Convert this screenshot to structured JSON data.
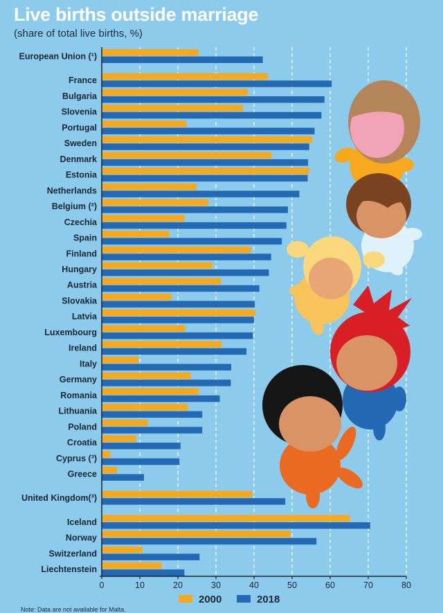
{
  "colors": {
    "background": "#8ccbec",
    "series_2000": "#f6a91d",
    "series_2018": "#2369b3",
    "grid": "#ffffff",
    "axis": "#1b2636"
  },
  "note": "Note: Data are not available for Malta.",
  "chart_data": {
    "type": "bar",
    "orientation": "horizontal",
    "title": "Live births outside marriage",
    "subtitle": "(share of total live births, %)",
    "xlim": [
      0,
      80
    ],
    "xticks": [
      0,
      10,
      20,
      30,
      40,
      50,
      60,
      70,
      80
    ],
    "grid": "vertical dashed",
    "legend_position": "bottom",
    "groups": [
      [
        "European Union (¹)"
      ],
      [
        "France",
        "Bulgaria",
        "Slovenia",
        "Portugal",
        "Sweden",
        "Denmark",
        "Estonia",
        "Netherlands",
        "Belgium (²)",
        "Czechia",
        "Spain",
        "Finland",
        "Hungary",
        "Austria",
        "Slovakia",
        "Latvia",
        "Luxembourg",
        "Ireland",
        "Italy",
        "Germany",
        "Romania",
        "Lithuania",
        "Poland",
        "Croatia",
        "Cyprus (³)",
        "Greece"
      ],
      [
        "United Kingdom(³)"
      ],
      [
        "Iceland",
        "Norway",
        "Switzerland",
        "Liechtenstein"
      ]
    ],
    "categories": [
      "European Union (¹)",
      "France",
      "Bulgaria",
      "Slovenia",
      "Portugal",
      "Sweden",
      "Denmark",
      "Estonia",
      "Netherlands",
      "Belgium (²)",
      "Czechia",
      "Spain",
      "Finland",
      "Hungary",
      "Austria",
      "Slovakia",
      "Latvia",
      "Luxembourg",
      "Ireland",
      "Italy",
      "Germany",
      "Romania",
      "Lithuania",
      "Poland",
      "Croatia",
      "Cyprus (³)",
      "Greece",
      "United Kingdom(³)",
      "Iceland",
      "Norway",
      "Switzerland",
      "Liechtenstein"
    ],
    "series": [
      {
        "name": "2000",
        "values": [
          25.4,
          43.6,
          38.4,
          37.1,
          22.2,
          55.3,
          44.6,
          54.5,
          24.9,
          28.0,
          21.8,
          17.7,
          39.2,
          29.0,
          31.3,
          18.3,
          40.3,
          21.9,
          31.5,
          9.7,
          23.4,
          25.5,
          22.6,
          12.1,
          9.0,
          2.3,
          4.0,
          39.5,
          65.2,
          49.6,
          10.7,
          15.7
        ]
      },
      {
        "name": "2018",
        "values": [
          42.3,
          60.4,
          58.5,
          57.7,
          55.9,
          54.5,
          54.2,
          54.1,
          51.9,
          48.9,
          48.5,
          47.3,
          44.5,
          43.9,
          41.4,
          40.2,
          40.0,
          39.7,
          38.0,
          34.0,
          33.9,
          31.0,
          26.4,
          26.4,
          20.7,
          20.4,
          11.1,
          48.2,
          70.5,
          56.4,
          25.7,
          21.7
        ]
      }
    ]
  }
}
